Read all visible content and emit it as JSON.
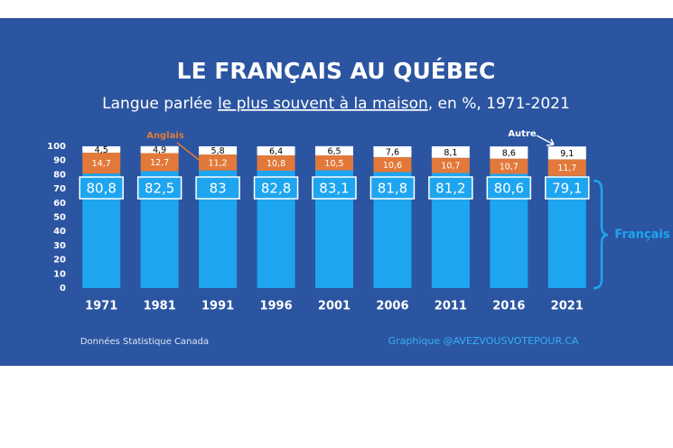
{
  "chart_data": {
    "type": "stacked_bar",
    "title": "LE FRANÇAIS AU QUÉBEC",
    "subtitle": [
      "Langue parlée",
      "le plus souvent à la maison",
      ", en %, 1971-2021"
    ],
    "categories": [
      "1971",
      "1981",
      "1991",
      "1996",
      "2001",
      "2006",
      "2011",
      "2016",
      "2021"
    ],
    "series": [
      {
        "name": "Français",
        "color": "#1ea5f0",
        "values": [
          80.8,
          82.5,
          83,
          82.8,
          83.1,
          81.8,
          81.2,
          80.6,
          79.1
        ],
        "value_labels": [
          "80,8",
          "82,5",
          "83",
          "82,8",
          "83,1",
          "81,8",
          "81,2",
          "80,6",
          "79,1"
        ]
      },
      {
        "name": "Anglais",
        "color": "#e2793a",
        "values": [
          14.7,
          12.7,
          11.2,
          10.8,
          10.5,
          10.6,
          10.7,
          10.7,
          11.7
        ],
        "value_labels": [
          "14,7",
          "12,7",
          "11,2",
          "10,8",
          "10,5",
          "10,6",
          "10,7",
          "10,7",
          "11,7"
        ]
      },
      {
        "name": "Autre",
        "color": "#ffffff",
        "values": [
          4.5,
          4.9,
          5.8,
          6.4,
          6.5,
          7.6,
          8.1,
          8.6,
          9.1
        ],
        "value_labels": [
          "4,5",
          "4,9",
          "5,8",
          "6,4",
          "6,5",
          "7,6",
          "8,1",
          "8,6",
          "9,1"
        ]
      }
    ],
    "ylim": [
      0,
      100
    ],
    "yticks": [
      0,
      10,
      20,
      30,
      40,
      50,
      60,
      70,
      80,
      90,
      100
    ],
    "source": "Données Statistique Canada",
    "credit": "Graphique @AVEZVOUSVOTEPOUR.CA"
  }
}
